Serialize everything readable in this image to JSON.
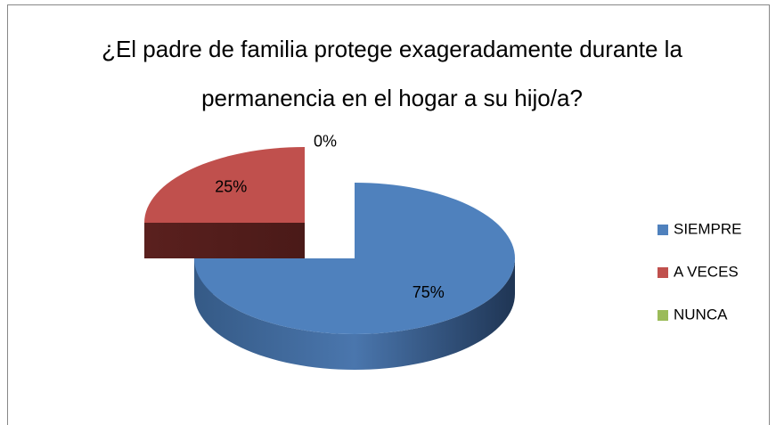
{
  "chart_data": {
    "type": "pie",
    "title": "¿El padre de familia protege exageradamente durante la permanencia en el hogar a su hijo/a?",
    "categories": [
      "SIEMPRE",
      "A VECES",
      "NUNCA"
    ],
    "values": [
      75,
      25,
      0
    ],
    "value_labels": [
      "75%",
      "25%",
      "0%"
    ],
    "colors": [
      "#4f81bd",
      "#c0504d",
      "#9bbb59"
    ],
    "legend": "right"
  }
}
